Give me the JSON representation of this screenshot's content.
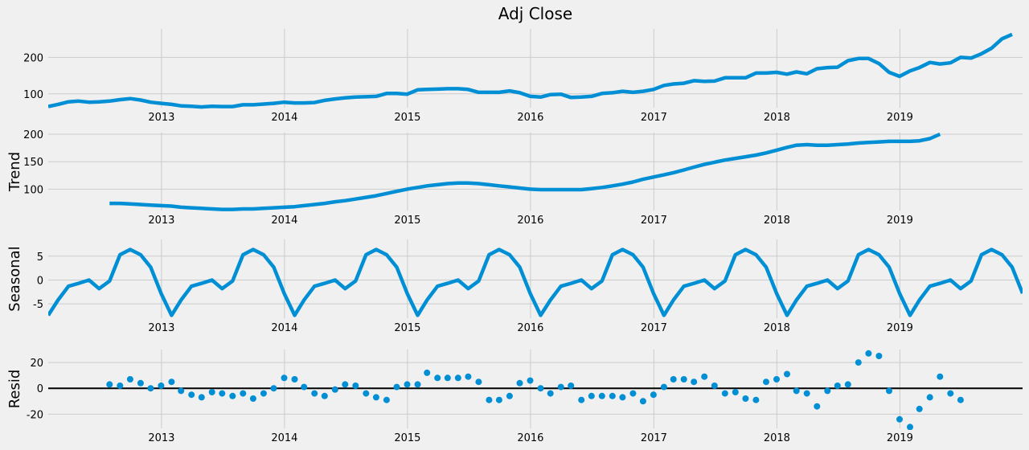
{
  "colors": {
    "background": "#f0f0f0",
    "line": "#008fd5",
    "grid": "#cbcbcb",
    "zero_line": "#000000",
    "text": "#000000"
  },
  "chart_data": [
    {
      "type": "line",
      "title": "Adj Close",
      "ylabel": "",
      "xlabel": "",
      "xlim": [
        "2012-01-31",
        "2019-12-31"
      ],
      "ylim": [
        62,
        278
      ],
      "yticks": [
        100,
        200
      ],
      "xticks": [
        "2013",
        "2014",
        "2015",
        "2016",
        "2017",
        "2018",
        "2019"
      ],
      "grid": true,
      "x_start": "2012-01",
      "frequency": "monthly",
      "values": [
        65,
        71,
        78,
        80,
        77,
        78,
        80,
        84,
        87,
        83,
        77,
        74,
        71,
        67,
        66,
        64,
        66,
        65,
        65,
        70,
        70,
        72,
        74,
        77,
        75,
        75,
        76,
        82,
        86,
        89,
        91,
        92,
        93,
        101,
        101,
        99,
        111,
        112,
        113,
        114,
        114,
        112,
        104,
        104,
        104,
        108,
        103,
        93,
        91,
        98,
        99,
        90,
        91,
        93,
        101,
        103,
        107,
        104,
        107,
        112,
        123,
        127,
        129,
        136,
        134,
        135,
        144,
        144,
        144,
        157,
        157,
        159,
        154,
        160,
        155,
        169,
        172,
        173,
        191,
        197,
        197,
        183,
        159,
        148,
        163,
        172,
        186,
        182,
        185,
        200,
        198,
        210,
        225,
        251,
        263
      ]
    },
    {
      "type": "line",
      "title": "",
      "ylabel": "Trend",
      "xlabel": "",
      "xlim": [
        "2012-01-31",
        "2019-12-31"
      ],
      "ylim": [
        61,
        203
      ],
      "yticks": [
        100,
        150,
        200
      ],
      "xticks": [
        "2013",
        "2014",
        "2015",
        "2016",
        "2017",
        "2018",
        "2019"
      ],
      "grid": true,
      "x_start": "2012-07",
      "frequency": "monthly",
      "values": [
        74,
        74,
        73,
        72,
        71,
        70,
        69,
        67,
        66,
        65,
        64,
        63,
        63,
        64,
        64,
        65,
        66,
        67,
        68,
        70,
        72,
        74,
        77,
        79,
        82,
        85,
        88,
        92,
        96,
        100,
        103,
        106,
        108,
        110,
        111,
        111,
        110,
        108,
        106,
        104,
        102,
        100,
        99,
        99,
        99,
        99,
        99,
        101,
        103,
        106,
        109,
        113,
        118,
        122,
        126,
        130,
        135,
        140,
        145,
        149,
        153,
        156,
        159,
        162,
        166,
        171,
        176,
        180,
        181,
        180,
        180,
        181,
        182,
        184,
        185,
        186,
        187,
        187,
        187,
        188,
        192,
        200
      ]
    },
    {
      "type": "line",
      "title": "",
      "ylabel": "Seasonal",
      "xlabel": "",
      "xlim": [
        "2012-01-31",
        "2019-12-31"
      ],
      "ylim": [
        -8,
        8.5
      ],
      "yticks": [
        -5,
        0,
        5
      ],
      "xticks": [
        "2013",
        "2014",
        "2015",
        "2016",
        "2017",
        "2018",
        "2019"
      ],
      "grid": true,
      "x_start": "2012-01",
      "frequency": "monthly",
      "pattern": [
        -7.4,
        -4.2,
        -1.3,
        -0.7,
        0.0,
        -1.8,
        -0.2,
        5.3,
        6.4,
        5.3,
        2.7,
        -2.8
      ],
      "cycles": 8
    },
    {
      "type": "scatter",
      "title": "",
      "ylabel": "Resid",
      "xlabel": "",
      "xlim": [
        "2012-01-31",
        "2019-12-31"
      ],
      "ylim": [
        -31,
        30
      ],
      "yticks": [
        -20,
        0,
        20
      ],
      "xticks": [
        "2013",
        "2014",
        "2015",
        "2016",
        "2017",
        "2018",
        "2019"
      ],
      "grid": true,
      "zero_line": true,
      "x_start": "2012-07",
      "frequency": "monthly",
      "values": [
        3,
        2,
        7,
        4,
        0,
        2,
        5,
        -2,
        -5,
        -7,
        -3,
        -4,
        -6,
        -4,
        -8,
        -4,
        0,
        8,
        7,
        1,
        -4,
        -6,
        -1,
        3,
        2,
        -4,
        -7,
        -9,
        1,
        3,
        3,
        12,
        8,
        8,
        8,
        9,
        5,
        -9,
        -9,
        -6,
        4,
        6,
        0,
        -4,
        1,
        2,
        -9,
        -6,
        -6,
        -6,
        -7,
        -4,
        -10,
        -5,
        1,
        7,
        7,
        5,
        9,
        2,
        -4,
        -3,
        -8,
        -9,
        5,
        7,
        11,
        -2,
        -4,
        -14,
        -2,
        2,
        3,
        20,
        27,
        25,
        -2,
        -24,
        -30,
        -16,
        -7,
        9,
        -4,
        -9
      ]
    }
  ]
}
